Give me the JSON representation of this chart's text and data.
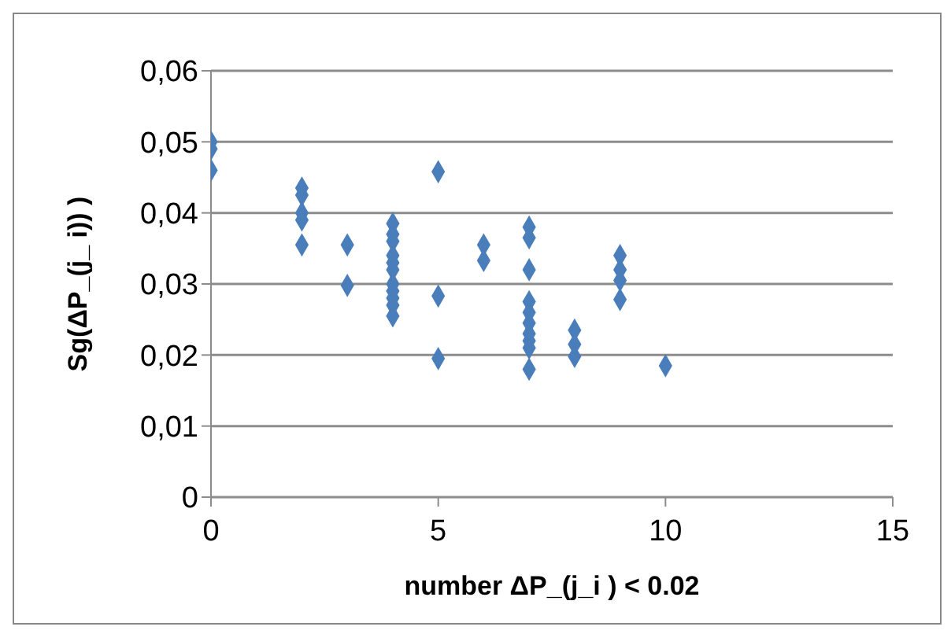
{
  "chart_data": {
    "type": "scatter",
    "xlabel": "number  ΔP_(j_i ) < 0.02",
    "ylabel": "Sg(ΔP_(j_ i)) )",
    "x": [
      0,
      0,
      0,
      2,
      2,
      2,
      2,
      2,
      3,
      3,
      4,
      4,
      4,
      4,
      4,
      4,
      4,
      4,
      4,
      4,
      4,
      5,
      5,
      5,
      6,
      6,
      7,
      7,
      7,
      7,
      7,
      7,
      7,
      7,
      7,
      7,
      8,
      8,
      8,
      9,
      9,
      9,
      9,
      10
    ],
    "values": [
      0.05,
      0.049,
      0.046,
      0.0435,
      0.0425,
      0.04,
      0.039,
      0.0355,
      0.0355,
      0.0298,
      0.0385,
      0.037,
      0.036,
      0.034,
      0.033,
      0.032,
      0.03,
      0.029,
      0.028,
      0.027,
      0.0255,
      0.0458,
      0.0283,
      0.0195,
      0.0355,
      0.0333,
      0.038,
      0.0365,
      0.032,
      0.0275,
      0.026,
      0.0245,
      0.023,
      0.022,
      0.021,
      0.018,
      0.0235,
      0.0215,
      0.0198,
      0.034,
      0.032,
      0.0305,
      0.0278,
      0.0185
    ],
    "color": "#4a7ebb",
    "marker": "diamond",
    "grid": "y",
    "xlim": [
      0,
      15
    ],
    "xticks": [
      0,
      5,
      10,
      15
    ],
    "ylim": [
      0,
      0.06
    ],
    "yticks": [
      {
        "value": 0,
        "label": "0"
      },
      {
        "value": 0.01,
        "label": "0,01"
      },
      {
        "value": 0.02,
        "label": "0,02"
      },
      {
        "value": 0.03,
        "label": "0,03"
      },
      {
        "value": 0.04,
        "label": "0,04"
      },
      {
        "value": 0.05,
        "label": "0,05"
      },
      {
        "value": 0.06,
        "label": "0,06"
      }
    ]
  }
}
